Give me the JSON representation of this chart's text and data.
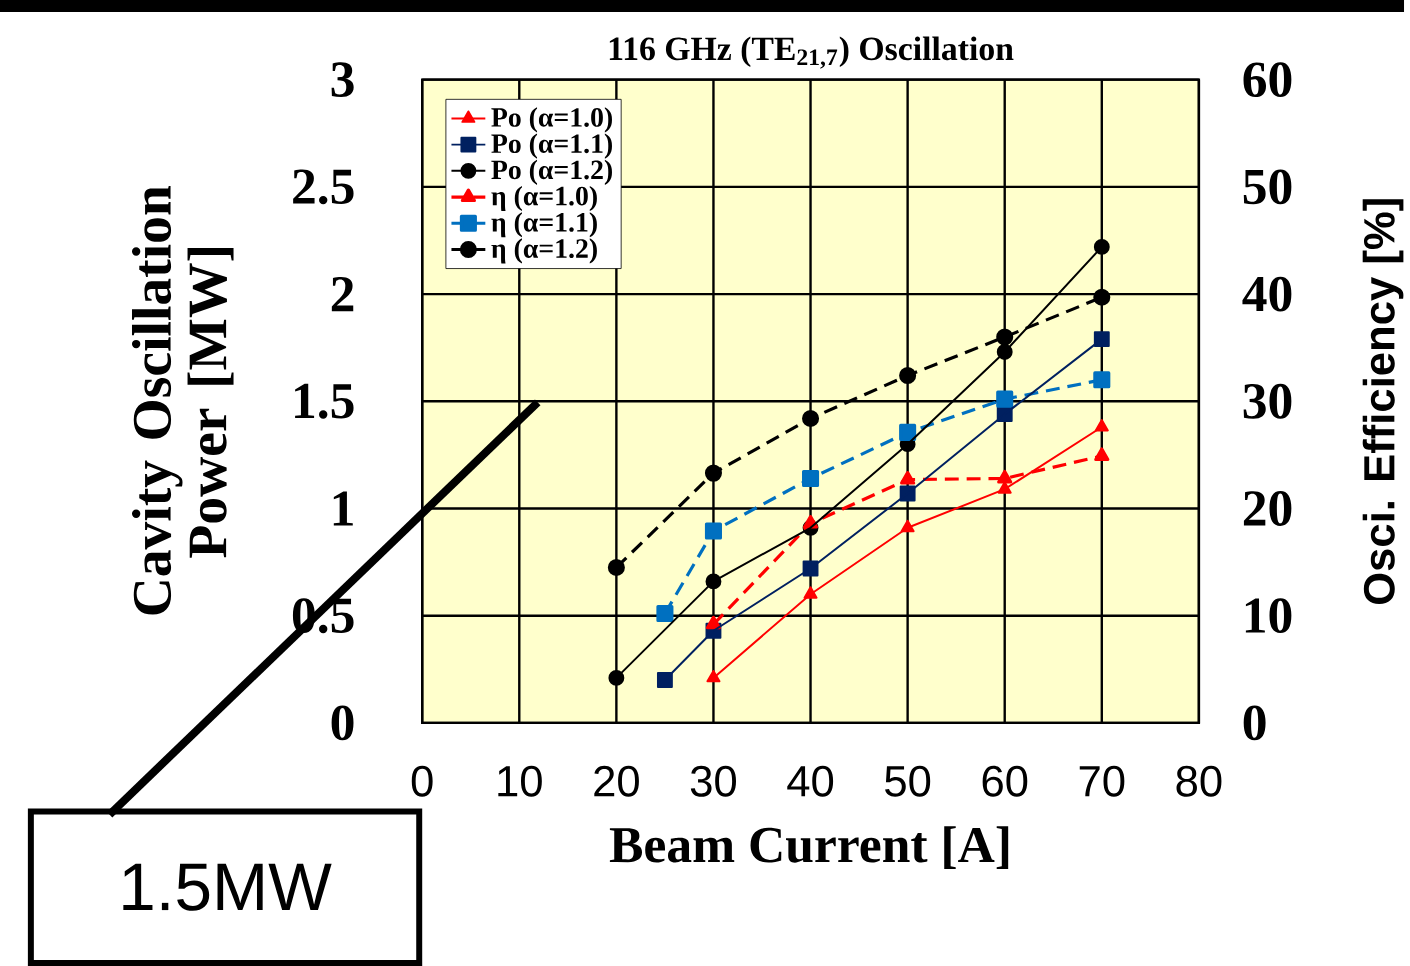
{
  "chart_data": {
    "type": "line",
    "title": "116 GHz (TE$_{21,7}$) Oscillation",
    "xlabel": "Beam Current [A]",
    "ylabel": "Cavity Oscillation Power [MW]",
    "y2label": "Osci. Efficiency [%]",
    "xlim": [
      0,
      80
    ],
    "xticks": [
      0,
      10,
      20,
      30,
      40,
      50,
      60,
      70,
      80
    ],
    "ylim": [
      0,
      3
    ],
    "yticks": [
      0,
      0.5,
      1,
      1.5,
      2,
      2.5,
      3
    ],
    "y2lim": [
      0,
      60
    ],
    "y2ticks": [
      0,
      10,
      20,
      30,
      40,
      50,
      60
    ],
    "grid": true,
    "legend": "top left",
    "annotations": [
      "1.5MW"
    ],
    "series": [
      {
        "name": "Po (α=1.0)",
        "color": "#ff0000",
        "marker": "triangle",
        "line_style": "solid",
        "x": [
          30,
          40,
          50,
          60,
          70
        ],
        "values": [
          0.21,
          0.6,
          0.91,
          1.09,
          1.38
        ]
      },
      {
        "name": "Po (α=1.1)",
        "color": "#002060",
        "marker": "square",
        "line_style": "solid",
        "x": [
          25,
          30,
          40,
          50,
          60,
          70
        ],
        "values": [
          0.2,
          0.43,
          0.72,
          1.07,
          1.44,
          1.79
        ]
      },
      {
        "name": "Po (α=1.2)",
        "color": "#000000",
        "marker": "circle",
        "line_style": "solid",
        "x": [
          20,
          30,
          40,
          50,
          60,
          70
        ],
        "values": [
          0.21,
          0.66,
          0.91,
          1.3,
          1.73,
          2.22
        ]
      },
      {
        "name": "η (α=1.0)",
        "color": "#ff0000",
        "marker": "triangle",
        "line_style": "dashed",
        "axis": "y2",
        "x": [
          30,
          40,
          50,
          60,
          70
        ],
        "values": [
          9.2,
          18.6,
          22.7,
          22.8,
          24.9
        ]
      },
      {
        "name": "η (α=1.1)",
        "color": "#0070c0",
        "marker": "square",
        "line_style": "dashed",
        "axis": "y2",
        "x": [
          25,
          30,
          40,
          50,
          60,
          70
        ],
        "values": [
          10.2,
          17.9,
          22.8,
          27.1,
          30.2,
          32
        ]
      },
      {
        "name": "η (α=1.2)",
        "color": "#000000",
        "marker": "circle",
        "line_style": "dashed",
        "axis": "y2",
        "x": [
          20,
          30,
          40,
          50,
          60,
          70
        ],
        "values": [
          14.5,
          23.3,
          28.4,
          32.4,
          36,
          39.7
        ]
      }
    ]
  }
}
